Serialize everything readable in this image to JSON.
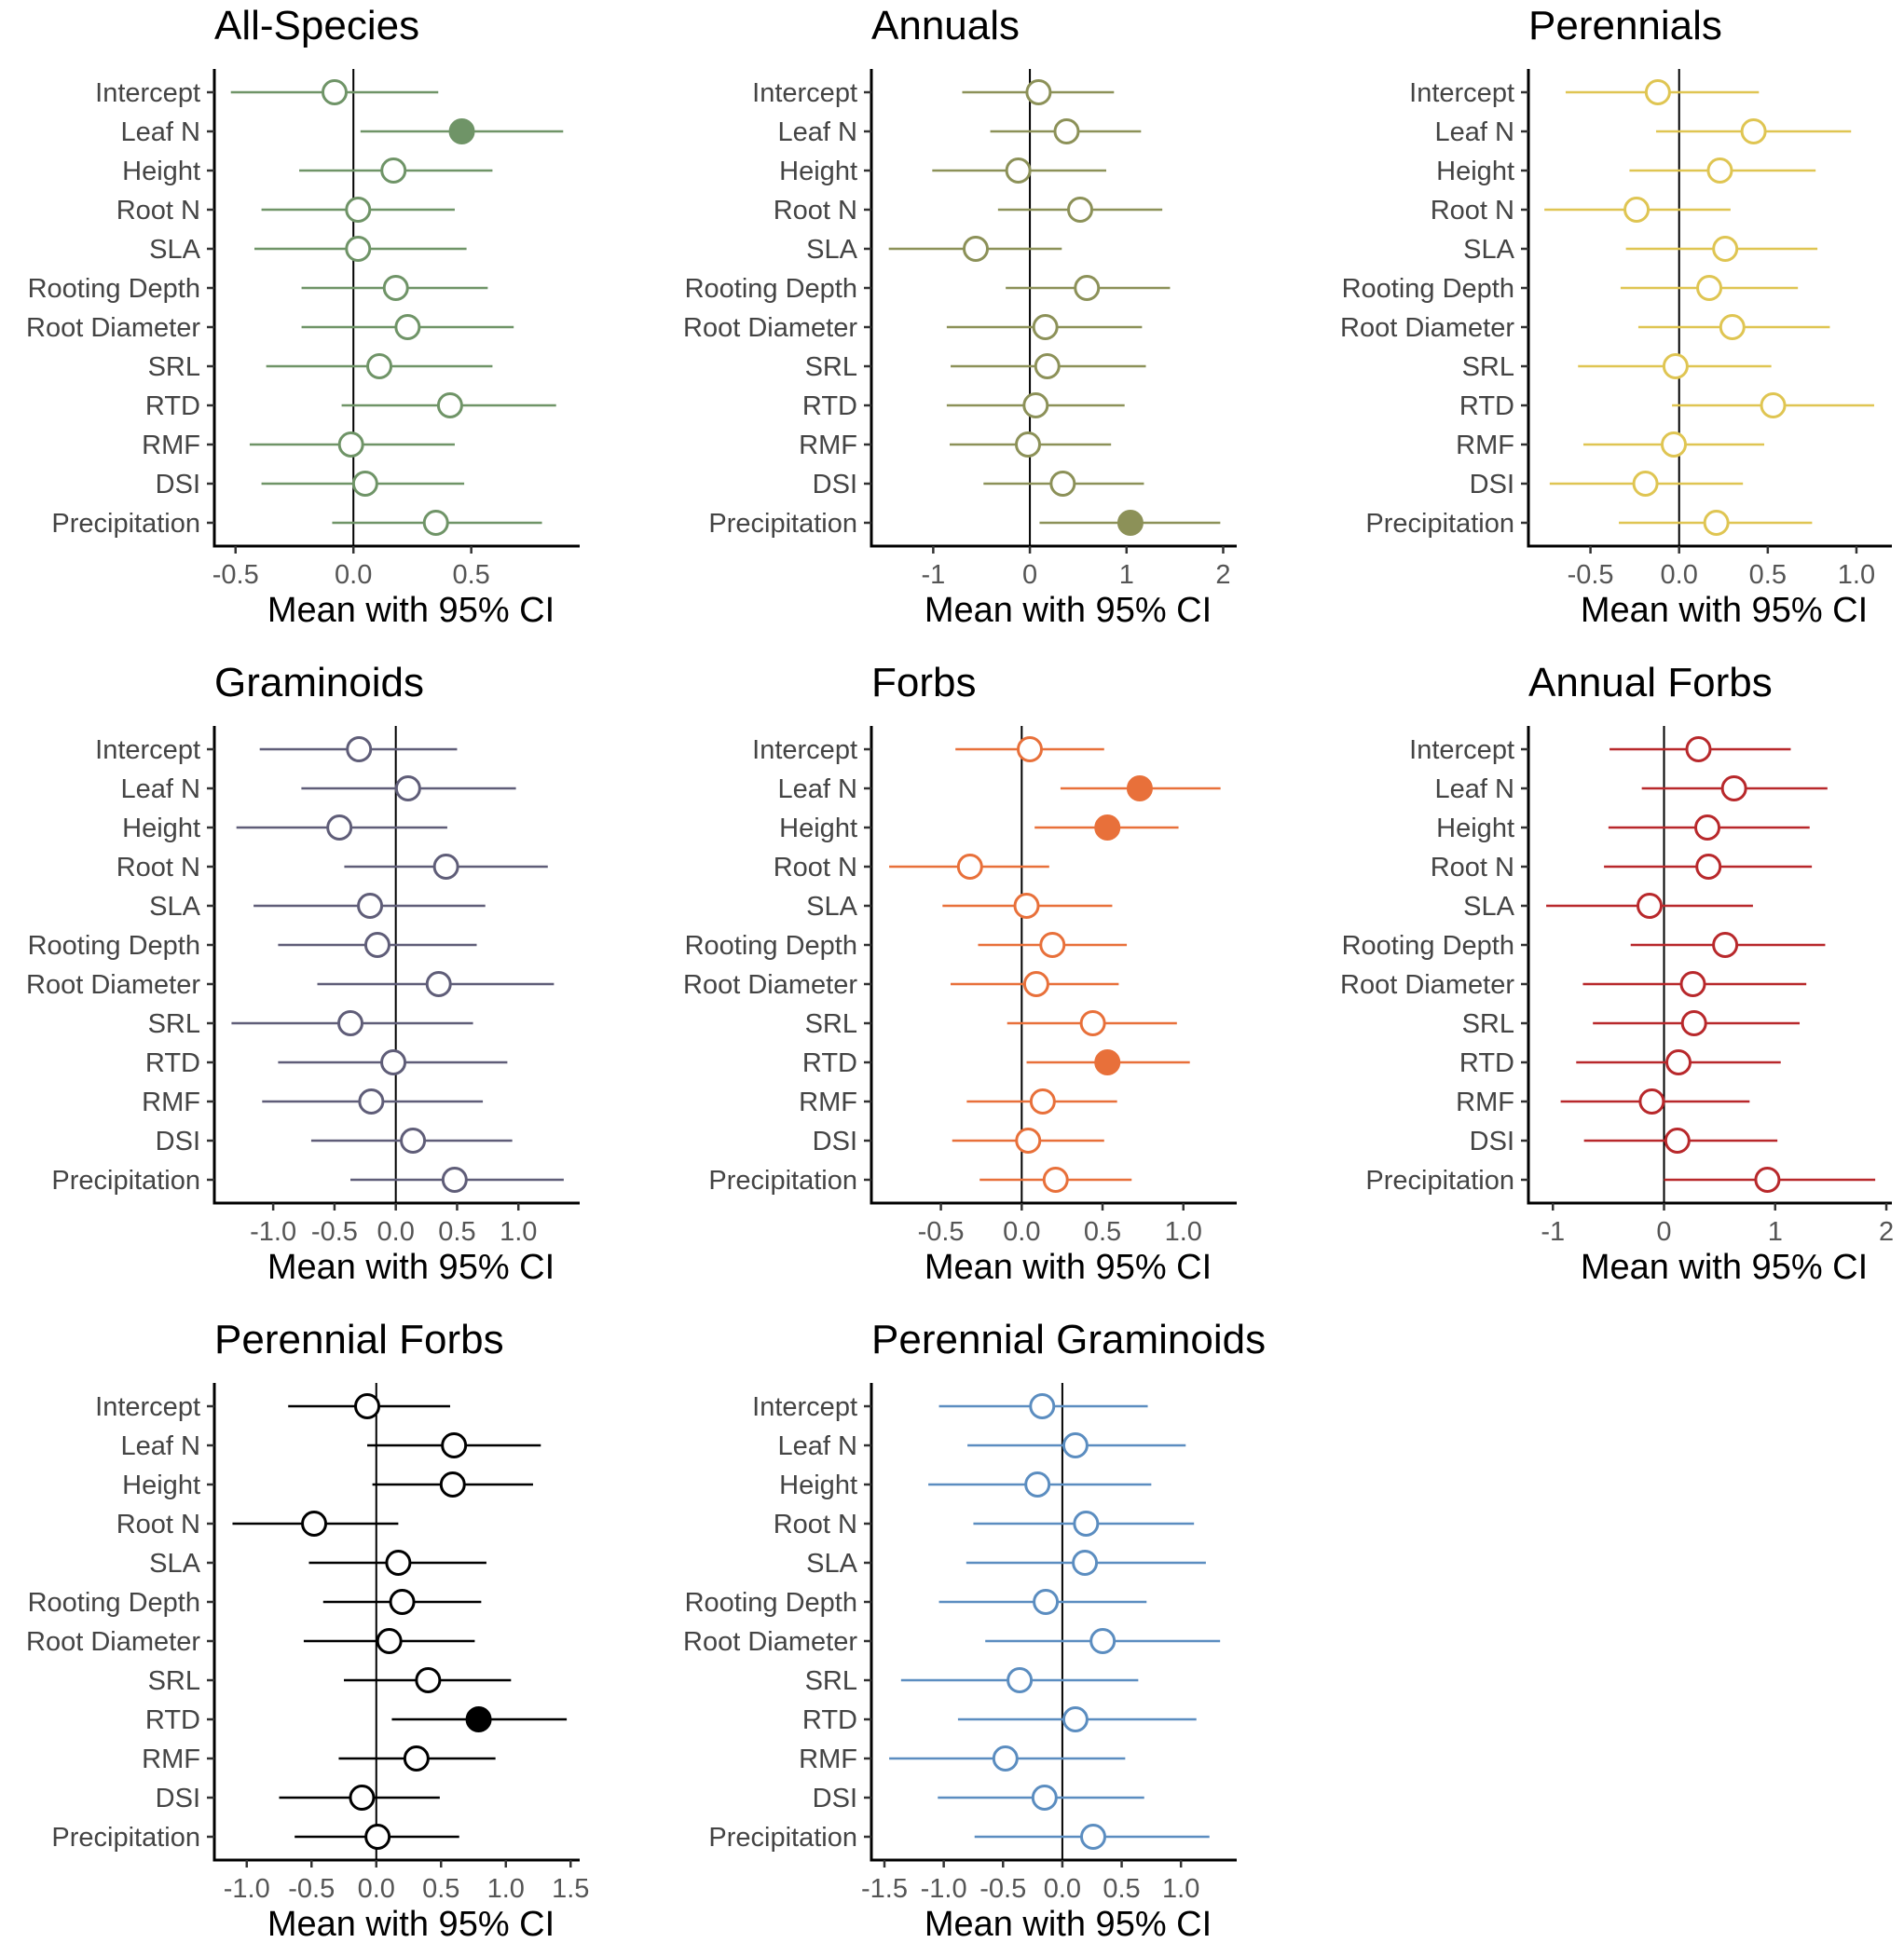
{
  "chart_data": [
    {
      "type": "forest",
      "title": "All-Species",
      "xlabel": "Mean with 95% CI",
      "color": "#6f9467",
      "xlim": [
        -0.59,
        0.96
      ],
      "xticks": [
        -0.5,
        0.0,
        0.5
      ],
      "xtick_labels": [
        "-0.5",
        "0.0",
        "0.5"
      ],
      "categories": [
        "Intercept",
        "Leaf N",
        "Height",
        "Root N",
        "SLA",
        "Rooting Depth",
        "Root Diameter",
        "SRL",
        "RTD",
        "RMF",
        "DSI",
        "Precipitation"
      ],
      "mean": [
        -0.08,
        0.46,
        0.17,
        0.02,
        0.02,
        0.18,
        0.23,
        0.11,
        0.41,
        -0.01,
        0.05,
        0.35
      ],
      "lower": [
        -0.52,
        0.03,
        -0.23,
        -0.39,
        -0.42,
        -0.22,
        -0.22,
        -0.37,
        -0.05,
        -0.44,
        -0.39,
        -0.09
      ],
      "upper": [
        0.36,
        0.89,
        0.59,
        0.43,
        0.48,
        0.57,
        0.68,
        0.59,
        0.86,
        0.43,
        0.47,
        0.8
      ],
      "significant": [
        false,
        true,
        false,
        false,
        false,
        false,
        false,
        false,
        false,
        false,
        false,
        false
      ]
    },
    {
      "type": "forest",
      "title": "Annuals",
      "xlabel": "Mean with 95% CI",
      "color": "#8c9158",
      "xlim": [
        -1.64,
        2.14
      ],
      "xticks": [
        -1,
        0,
        1,
        2
      ],
      "xtick_labels": [
        "-1",
        "0",
        "1",
        "2"
      ],
      "categories": [
        "Intercept",
        "Leaf N",
        "Height",
        "Root N",
        "SLA",
        "Rooting Depth",
        "Root Diameter",
        "SRL",
        "RTD",
        "RMF",
        "DSI",
        "Precipitation"
      ],
      "mean": [
        0.09,
        0.38,
        -0.12,
        0.52,
        -0.56,
        0.59,
        0.16,
        0.18,
        0.06,
        -0.02,
        0.34,
        1.04
      ],
      "lower": [
        -0.7,
        -0.41,
        -1.01,
        -0.33,
        -1.46,
        -0.25,
        -0.86,
        -0.82,
        -0.86,
        -0.83,
        -0.48,
        0.1
      ],
      "upper": [
        0.87,
        1.15,
        0.79,
        1.37,
        0.33,
        1.45,
        1.16,
        1.2,
        0.98,
        0.84,
        1.18,
        1.97
      ],
      "significant": [
        false,
        false,
        false,
        false,
        false,
        false,
        false,
        false,
        false,
        false,
        false,
        true
      ]
    },
    {
      "type": "forest",
      "title": "Perennials",
      "xlabel": "Mean with 95% CI",
      "color": "#dfc552",
      "xlim": [
        -0.85,
        1.2
      ],
      "xticks": [
        -0.5,
        0.0,
        0.5,
        1.0
      ],
      "xtick_labels": [
        "-0.5",
        "0.0",
        "0.5",
        "1.0"
      ],
      "categories": [
        "Intercept",
        "Leaf N",
        "Height",
        "Root N",
        "SLA",
        "Rooting Depth",
        "Root Diameter",
        "SRL",
        "RTD",
        "RMF",
        "DSI",
        "Precipitation"
      ],
      "mean": [
        -0.12,
        0.42,
        0.23,
        -0.24,
        0.26,
        0.17,
        0.3,
        -0.02,
        0.53,
        -0.03,
        -0.19,
        0.21
      ],
      "lower": [
        -0.64,
        -0.13,
        -0.28,
        -0.76,
        -0.3,
        -0.33,
        -0.23,
        -0.57,
        -0.04,
        -0.54,
        -0.73,
        -0.34
      ],
      "upper": [
        0.45,
        0.97,
        0.77,
        0.29,
        0.78,
        0.67,
        0.85,
        0.52,
        1.1,
        0.48,
        0.36,
        0.75
      ],
      "significant": [
        false,
        false,
        false,
        false,
        false,
        false,
        false,
        false,
        false,
        false,
        false,
        false
      ]
    },
    {
      "type": "forest",
      "title": "Graminoids",
      "xlabel": "Mean with 95% CI",
      "color": "#5f5d78",
      "xlim": [
        -1.48,
        1.5
      ],
      "xticks": [
        -1.0,
        -0.5,
        0.0,
        0.5,
        1.0
      ],
      "xtick_labels": [
        "-1.0",
        "-0.5",
        "0.0",
        "0.5",
        "1.0"
      ],
      "categories": [
        "Intercept",
        "Leaf N",
        "Height",
        "Root N",
        "SLA",
        "Rooting Depth",
        "Root Diameter",
        "SRL",
        "RTD",
        "RMF",
        "DSI",
        "Precipitation"
      ],
      "mean": [
        -0.3,
        0.1,
        -0.46,
        0.41,
        -0.21,
        -0.15,
        0.35,
        -0.37,
        -0.02,
        -0.2,
        0.14,
        0.48
      ],
      "lower": [
        -1.11,
        -0.77,
        -1.3,
        -0.42,
        -1.16,
        -0.96,
        -0.64,
        -1.34,
        -0.96,
        -1.09,
        -0.69,
        -0.37
      ],
      "upper": [
        0.5,
        0.98,
        0.42,
        1.24,
        0.73,
        0.66,
        1.29,
        0.63,
        0.91,
        0.71,
        0.95,
        1.37
      ],
      "significant": [
        false,
        false,
        false,
        false,
        false,
        false,
        false,
        false,
        false,
        false,
        false,
        false
      ]
    },
    {
      "type": "forest",
      "title": "Forbs",
      "xlabel": "Mean with 95% CI",
      "color": "#e8703a",
      "xlim": [
        -0.93,
        1.33
      ],
      "xticks": [
        -0.5,
        0.0,
        0.5,
        1.0
      ],
      "xtick_labels": [
        "-0.5",
        "0.0",
        "0.5",
        "1.0"
      ],
      "categories": [
        "Intercept",
        "Leaf N",
        "Height",
        "Root N",
        "SLA",
        "Rooting Depth",
        "Root Diameter",
        "SRL",
        "RTD",
        "RMF",
        "DSI",
        "Precipitation"
      ],
      "mean": [
        0.05,
        0.73,
        0.53,
        -0.32,
        0.03,
        0.19,
        0.09,
        0.44,
        0.53,
        0.13,
        0.04,
        0.21
      ],
      "lower": [
        -0.41,
        0.24,
        0.08,
        -0.82,
        -0.49,
        -0.27,
        -0.44,
        -0.09,
        0.03,
        -0.34,
        -0.43,
        -0.26
      ],
      "upper": [
        0.51,
        1.23,
        0.97,
        0.17,
        0.56,
        0.65,
        0.6,
        0.96,
        1.04,
        0.59,
        0.51,
        0.68
      ],
      "significant": [
        false,
        true,
        true,
        false,
        false,
        false,
        false,
        false,
        true,
        false,
        false,
        false
      ]
    },
    {
      "type": "forest",
      "title": "Annual Forbs",
      "xlabel": "Mean with 95% CI",
      "color": "#b8282b",
      "xlim": [
        -1.22,
        2.05
      ],
      "xticks": [
        -1,
        0,
        1,
        2
      ],
      "xtick_labels": [
        "-1",
        "0",
        "1",
        "2"
      ],
      "categories": [
        "Intercept",
        "Leaf N",
        "Height",
        "Root N",
        "SLA",
        "Rooting Depth",
        "Root Diameter",
        "SRL",
        "RTD",
        "RMF",
        "DSI",
        "Precipitation"
      ],
      "mean": [
        0.31,
        0.63,
        0.39,
        0.4,
        -0.13,
        0.55,
        0.26,
        0.27,
        0.13,
        -0.11,
        0.12,
        0.93
      ],
      "lower": [
        -0.49,
        -0.2,
        -0.5,
        -0.54,
        -1.06,
        -0.3,
        -0.73,
        -0.64,
        -0.79,
        -0.93,
        -0.72,
        0.0
      ],
      "upper": [
        1.14,
        1.47,
        1.31,
        1.33,
        0.8,
        1.45,
        1.28,
        1.22,
        1.05,
        0.77,
        1.02,
        1.9
      ],
      "significant": [
        false,
        false,
        false,
        false,
        false,
        false,
        false,
        false,
        false,
        false,
        false,
        false
      ]
    },
    {
      "type": "forest",
      "title": "Perennial Forbs",
      "xlabel": "Mean with 95% CI",
      "color": "#000000",
      "xlim": [
        -1.25,
        1.57
      ],
      "xticks": [
        -1.0,
        -0.5,
        0.0,
        0.5,
        1.0,
        1.5
      ],
      "xtick_labels": [
        "-1.0",
        "-0.5",
        "0.0",
        "0.5",
        "1.0",
        "1.5"
      ],
      "categories": [
        "Intercept",
        "Leaf N",
        "Height",
        "Root N",
        "SLA",
        "Rooting Depth",
        "Root Diameter",
        "SRL",
        "RTD",
        "RMF",
        "DSI",
        "Precipitation"
      ],
      "mean": [
        -0.07,
        0.6,
        0.59,
        -0.48,
        0.17,
        0.2,
        0.1,
        0.4,
        0.79,
        0.31,
        -0.11,
        0.01
      ],
      "lower": [
        -0.68,
        -0.07,
        -0.03,
        -1.11,
        -0.52,
        -0.41,
        -0.56,
        -0.25,
        0.12,
        -0.29,
        -0.75,
        -0.63
      ],
      "upper": [
        0.57,
        1.27,
        1.21,
        0.17,
        0.85,
        0.81,
        0.76,
        1.04,
        1.47,
        0.92,
        0.49,
        0.64
      ],
      "significant": [
        false,
        false,
        false,
        false,
        false,
        false,
        false,
        false,
        true,
        false,
        false,
        false
      ]
    },
    {
      "type": "forest",
      "title": "Perennial Graminoids",
      "xlabel": "Mean with 95% CI",
      "color": "#5b8dc0",
      "xlim": [
        -1.61,
        1.47
      ],
      "xticks": [
        -1.5,
        -1.0,
        -0.5,
        0.0,
        0.5,
        1.0
      ],
      "xtick_labels": [
        "-1.5",
        "-1.0",
        "-0.5",
        "0.0",
        "0.5",
        "1.0"
      ],
      "categories": [
        "Intercept",
        "Leaf N",
        "Height",
        "Root N",
        "SLA",
        "Rooting Depth",
        "Root Diameter",
        "SRL",
        "RTD",
        "RMF",
        "DSI",
        "Precipitation"
      ],
      "mean": [
        -0.17,
        0.11,
        -0.21,
        0.2,
        0.19,
        -0.14,
        0.34,
        -0.36,
        0.11,
        -0.48,
        -0.15,
        0.26
      ],
      "lower": [
        -1.04,
        -0.8,
        -1.13,
        -0.75,
        -0.81,
        -1.04,
        -0.65,
        -1.36,
        -0.88,
        -1.46,
        -1.05,
        -0.74
      ],
      "upper": [
        0.72,
        1.04,
        0.75,
        1.11,
        1.21,
        0.71,
        1.33,
        0.64,
        1.13,
        0.53,
        0.69,
        1.24
      ],
      "significant": [
        false,
        false,
        false,
        false,
        false,
        false,
        false,
        false,
        false,
        false,
        false,
        false
      ]
    }
  ]
}
